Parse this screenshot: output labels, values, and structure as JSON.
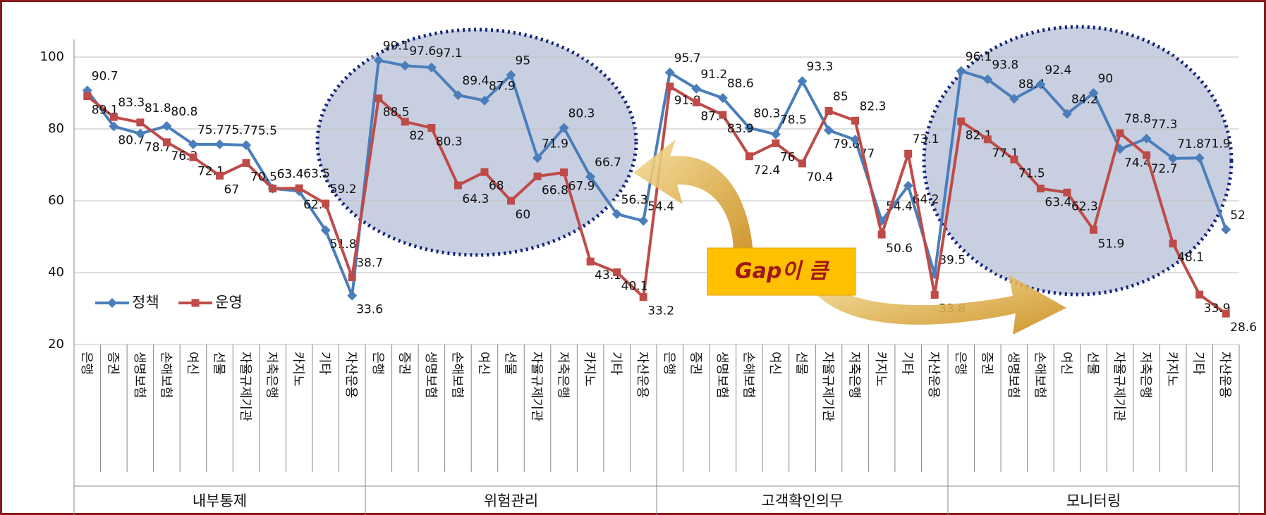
{
  "chart_data": {
    "type": "line",
    "categories": [
      "은행",
      "증권",
      "생명보험",
      "손해보험",
      "여신",
      "선물",
      "자율규제기관",
      "저축은행",
      "카지노",
      "기타",
      "자산운용",
      "은행",
      "증권",
      "생명보험",
      "손해보험",
      "여신",
      "선물",
      "자율규제기관",
      "저축은행",
      "카지노",
      "기타",
      "자산운용",
      "은행",
      "증권",
      "생명보험",
      "손해보험",
      "여신",
      "선물",
      "자율규제기관",
      "저축은행",
      "카지노",
      "기타",
      "자산운용",
      "은행",
      "증권",
      "생명보험",
      "손해보험",
      "여신",
      "선물",
      "자율규제기관",
      "저축은행",
      "카지노",
      "기타",
      "자산운용"
    ],
    "groups": [
      "내부통제",
      "위험관리",
      "고객확인의무",
      "모니터링"
    ],
    "series": [
      {
        "name": "정책",
        "color": "#4a7ebb",
        "values": [
          90.7,
          80.7,
          78.7,
          80.8,
          75.7,
          75.7,
          75.5,
          63.4,
          62.7,
          51.8,
          33.6,
          99.1,
          97.6,
          97.1,
          89.4,
          87.9,
          95.0,
          71.9,
          80.3,
          66.7,
          56.3,
          54.4,
          95.7,
          91.2,
          88.6,
          80.3,
          78.5,
          93.3,
          79.6,
          77.0,
          54.4,
          64.2,
          39.5,
          96.1,
          93.8,
          88.4,
          92.4,
          84.2,
          90.0,
          74.4,
          77.3,
          71.8,
          71.9,
          52.0
        ]
      },
      {
        "name": "운영",
        "color": "#be4b48",
        "values": [
          89.1,
          83.3,
          81.8,
          76.3,
          72.1,
          67.0,
          70.5,
          63.4,
          63.5,
          59.2,
          38.7,
          88.5,
          82.0,
          80.3,
          64.3,
          68.0,
          60.0,
          66.8,
          67.9,
          43.1,
          40.1,
          33.2,
          91.8,
          87.4,
          83.9,
          72.4,
          76.0,
          70.4,
          85.0,
          82.3,
          50.6,
          73.1,
          33.8,
          82.1,
          77.1,
          71.5,
          63.4,
          62.3,
          51.9,
          78.8,
          72.7,
          48.1,
          33.9,
          28.6
        ]
      }
    ],
    "ylim": [
      20,
      100
    ],
    "yticks": [
      20,
      40,
      60,
      80,
      100
    ],
    "grid": true,
    "legend": "left",
    "annotation": "Gap이 큼"
  }
}
